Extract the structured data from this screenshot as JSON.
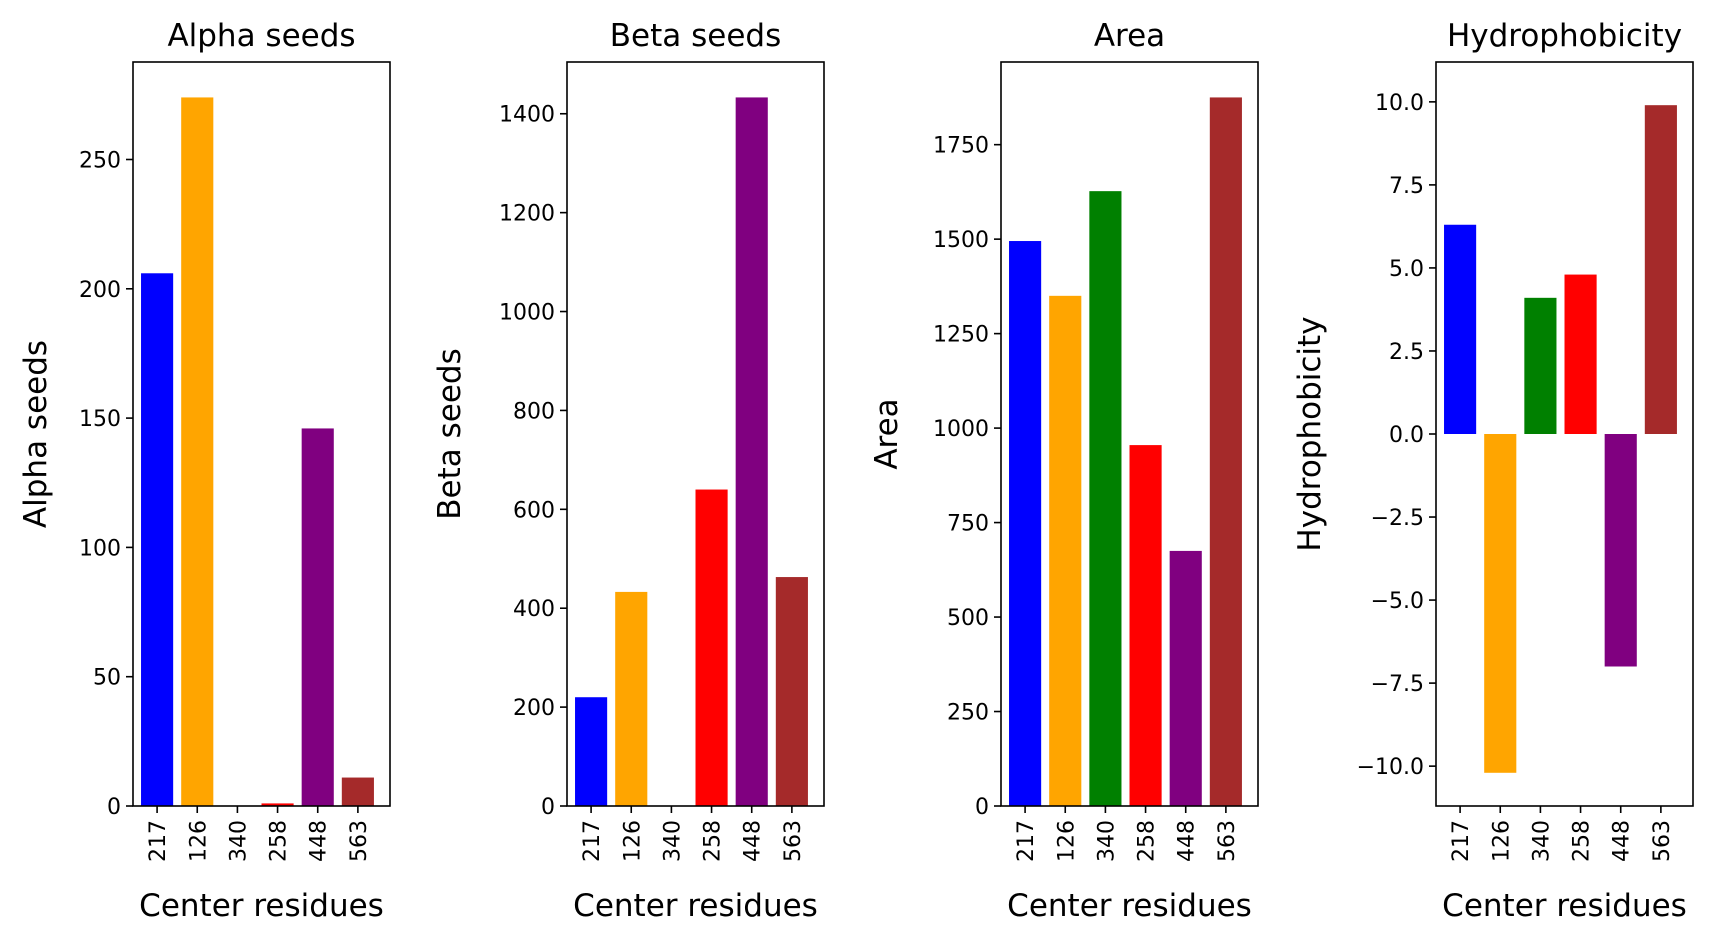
{
  "chart_data": [
    {
      "type": "bar",
      "title": "Alpha seeds",
      "xlabel": "Center residues",
      "ylabel": "Alpha seeds",
      "categories": [
        "217",
        "126",
        "340",
        "258",
        "448",
        "563"
      ],
      "values": [
        206,
        274,
        0,
        1,
        146,
        11
      ],
      "colors": [
        "#0000ff",
        "#ffa500",
        "#008000",
        "#ff0000",
        "#800080",
        "#a52a2a"
      ],
      "ylim": [
        0,
        287.7
      ],
      "yticks": [
        0,
        50,
        100,
        150,
        200,
        250
      ],
      "ytick_labels": [
        "0",
        "50",
        "100",
        "150",
        "200",
        "250"
      ]
    },
    {
      "type": "bar",
      "title": "Beta seeds",
      "xlabel": "Center residues",
      "ylabel": "Beta seeds",
      "categories": [
        "217",
        "126",
        "340",
        "258",
        "448",
        "563"
      ],
      "values": [
        220,
        433,
        0,
        640,
        1433,
        463
      ],
      "colors": [
        "#0000ff",
        "#ffa500",
        "#008000",
        "#ff0000",
        "#800080",
        "#a52a2a"
      ],
      "ylim": [
        0,
        1504.65
      ],
      "yticks": [
        0,
        200,
        400,
        600,
        800,
        1000,
        1200,
        1400
      ],
      "ytick_labels": [
        "0",
        "200",
        "400",
        "600",
        "800",
        "1000",
        "1200",
        "1400"
      ]
    },
    {
      "type": "bar",
      "title": "Area",
      "xlabel": "Center residues",
      "ylabel": "Area",
      "categories": [
        "217",
        "126",
        "340",
        "258",
        "448",
        "563"
      ],
      "values": [
        1495,
        1350,
        1627,
        955,
        675,
        1875
      ],
      "colors": [
        "#0000ff",
        "#ffa500",
        "#008000",
        "#ff0000",
        "#800080",
        "#a52a2a"
      ],
      "ylim": [
        0,
        1968.75
      ],
      "yticks": [
        0,
        250,
        500,
        750,
        1000,
        1250,
        1500,
        1750
      ],
      "ytick_labels": [
        "0",
        "250",
        "500",
        "750",
        "1000",
        "1250",
        "1500",
        "1750"
      ]
    },
    {
      "type": "bar",
      "title": "Hydrophobicity",
      "xlabel": "Center residues",
      "ylabel": "Hydrophobicity",
      "categories": [
        "217",
        "126",
        "340",
        "258",
        "448",
        "563"
      ],
      "values": [
        6.3,
        -10.2,
        4.1,
        4.8,
        -7.0,
        9.9
      ],
      "colors": [
        "#0000ff",
        "#ffa500",
        "#008000",
        "#ff0000",
        "#800080",
        "#a52a2a"
      ],
      "ylim": [
        -11.2,
        11.2
      ],
      "yticks": [
        -10.0,
        -7.5,
        -5.0,
        -2.5,
        0.0,
        2.5,
        5.0,
        7.5,
        10.0
      ],
      "ytick_labels": [
        "−10.0",
        "−7.5",
        "−5.0",
        "−2.5",
        "0.0",
        "2.5",
        "5.0",
        "7.5",
        "10.0"
      ]
    }
  ]
}
